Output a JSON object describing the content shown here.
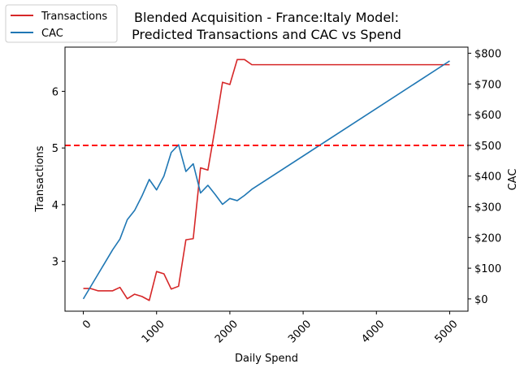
{
  "chart_data": {
    "type": "line",
    "title_line1": "Blended Acquisition - France:Italy Model:",
    "title_line2": "Predicted Transactions and CAC vs Spend",
    "xlabel": "Daily Spend",
    "ylabel_left": "Transactions",
    "ylabel_right": "CAC",
    "xlim": [
      -250,
      5250
    ],
    "ylim_left": [
      2.12,
      6.78
    ],
    "ylim_right": [
      -40,
      820
    ],
    "x_ticks": [
      0,
      1000,
      2000,
      3000,
      4000,
      5000
    ],
    "x_tick_labels": [
      "0",
      "1000",
      "2000",
      "3000",
      "4000",
      "5000"
    ],
    "y_left_ticks": [
      3,
      4,
      5,
      6
    ],
    "y_left_tick_labels": [
      "3",
      "4",
      "5",
      "6"
    ],
    "y_right_ticks": [
      0,
      100,
      200,
      300,
      400,
      500,
      600,
      700,
      800
    ],
    "y_right_tick_labels": [
      "$0",
      "$100",
      "$200",
      "$300",
      "$400",
      "$500",
      "$600",
      "$700",
      "$800"
    ],
    "threshold_cac": 500,
    "legend_position": "top-left",
    "series": [
      {
        "name": "Transactions",
        "axis": "left",
        "color": "#d62728",
        "x": [
          0,
          100,
          200,
          300,
          400,
          500,
          600,
          700,
          800,
          900,
          1000,
          1100,
          1200,
          1300,
          1400,
          1500,
          1600,
          1700,
          1800,
          1900,
          2000,
          2100,
          2200,
          2300,
          2400,
          2500,
          3000,
          4000,
          5000
        ],
        "values": [
          2.52,
          2.52,
          2.48,
          2.48,
          2.48,
          2.54,
          2.34,
          2.42,
          2.38,
          2.31,
          2.82,
          2.78,
          2.51,
          2.56,
          3.38,
          3.4,
          4.65,
          4.61,
          5.36,
          6.16,
          6.12,
          6.56,
          6.56,
          6.47,
          6.47,
          6.47,
          6.47,
          6.47,
          6.47
        ]
      },
      {
        "name": "CAC",
        "axis": "right",
        "color": "#1f77b4",
        "x": [
          0,
          100,
          200,
          300,
          400,
          500,
          600,
          700,
          800,
          900,
          1000,
          1100,
          1200,
          1300,
          1400,
          1500,
          1600,
          1700,
          1800,
          1900,
          2000,
          2100,
          2200,
          2300,
          5000
        ],
        "values": [
          0,
          40,
          80,
          120,
          160,
          195,
          258,
          288,
          335,
          389,
          355,
          400,
          477,
          502,
          415,
          440,
          345,
          370,
          340,
          308,
          327,
          320,
          337,
          357,
          775
        ]
      }
    ]
  }
}
